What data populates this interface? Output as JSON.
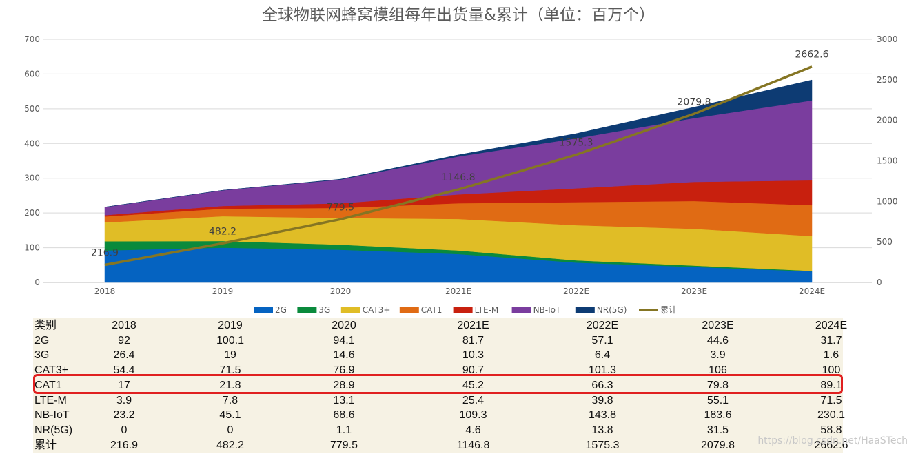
{
  "chart_data": {
    "type": "area",
    "title": "全球物联网蜂窝模组每年出货量&累计（单位：百万个）",
    "categories": [
      "2018",
      "2019",
      "2020",
      "2021E",
      "2022E",
      "2023E",
      "2024E"
    ],
    "stacked": true,
    "y_left": {
      "ylim": [
        0,
        700
      ],
      "ticks": [
        "0",
        "100",
        "200",
        "300",
        "400",
        "500",
        "600",
        "700"
      ]
    },
    "y_right": {
      "ylim": [
        0,
        3000
      ],
      "ticks": [
        "0",
        "500",
        "1000",
        "1500",
        "2000",
        "2500",
        "3000"
      ]
    },
    "grid": true,
    "legend_position": "bottom",
    "series": [
      {
        "name": "2G",
        "color": "#0563c1",
        "values": [
          92,
          100.1,
          94.1,
          81.7,
          57.1,
          44.6,
          31.7
        ]
      },
      {
        "name": "3G",
        "color": "#0a8a3c",
        "values": [
          26.4,
          19,
          14.6,
          10.3,
          6.4,
          3.9,
          1.6
        ]
      },
      {
        "name": "CAT3+",
        "color": "#e0bd26",
        "values": [
          54.4,
          71.5,
          76.9,
          90.7,
          101.3,
          106,
          100
        ]
      },
      {
        "name": "CAT1",
        "color": "#e06b14",
        "values": [
          17,
          21.8,
          28.9,
          45.2,
          66.3,
          79.8,
          89.1
        ]
      },
      {
        "name": "LTE-M",
        "color": "#c8200e",
        "values": [
          3.9,
          7.8,
          13.1,
          25.4,
          39.8,
          55.1,
          71.5
        ]
      },
      {
        "name": "NB-IoT",
        "color": "#7a3d9e",
        "values": [
          23.2,
          45.1,
          68.6,
          109.3,
          143.8,
          183.6,
          230.1
        ]
      },
      {
        "name": "NR(5G)",
        "color": "#0d3b73",
        "values": [
          0,
          0,
          1.1,
          4.6,
          13.8,
          31.5,
          58.8
        ]
      }
    ],
    "cumulative": {
      "name": "累计",
      "color": "#857523",
      "axis": "right",
      "values": [
        216.9,
        482.2,
        779.5,
        1146.8,
        1575.3,
        2079.8,
        2662.6
      ],
      "labels": [
        "216.9",
        "482.2",
        "779.5",
        "1146.8",
        "1575.3",
        "2079.8",
        "2662.6"
      ]
    }
  },
  "table": {
    "header": [
      "类别",
      "2018",
      "2019",
      "2020",
      "2021E",
      "2022E",
      "2023E",
      "2024E"
    ],
    "rows": [
      [
        "2G",
        "92",
        "100.1",
        "94.1",
        "81.7",
        "57.1",
        "44.6",
        "31.7"
      ],
      [
        "3G",
        "26.4",
        "19",
        "14.6",
        "10.3",
        "6.4",
        "3.9",
        "1.6"
      ],
      [
        "CAT3+",
        "54.4",
        "71.5",
        "76.9",
        "90.7",
        "101.3",
        "106",
        "100"
      ],
      [
        "CAT1",
        "17",
        "21.8",
        "28.9",
        "45.2",
        "66.3",
        "79.8",
        "89.1"
      ],
      [
        "LTE-M",
        "3.9",
        "7.8",
        "13.1",
        "25.4",
        "39.8",
        "55.1",
        "71.5"
      ],
      [
        "NB-IoT",
        "23.2",
        "45.1",
        "68.6",
        "109.3",
        "143.8",
        "183.6",
        "230.1"
      ],
      [
        "NR(5G)",
        "0",
        "0",
        "1.1",
        "4.6",
        "13.8",
        "31.5",
        "58.8"
      ],
      [
        "累计",
        "216.9",
        "482.2",
        "779.5",
        "1146.8",
        "1575.3",
        "2079.8",
        "2662.6"
      ]
    ],
    "highlight_row": "CAT1",
    "highlight_color": "#e02020"
  },
  "watermark": "https://blog.csdn.net/HaaSTech"
}
